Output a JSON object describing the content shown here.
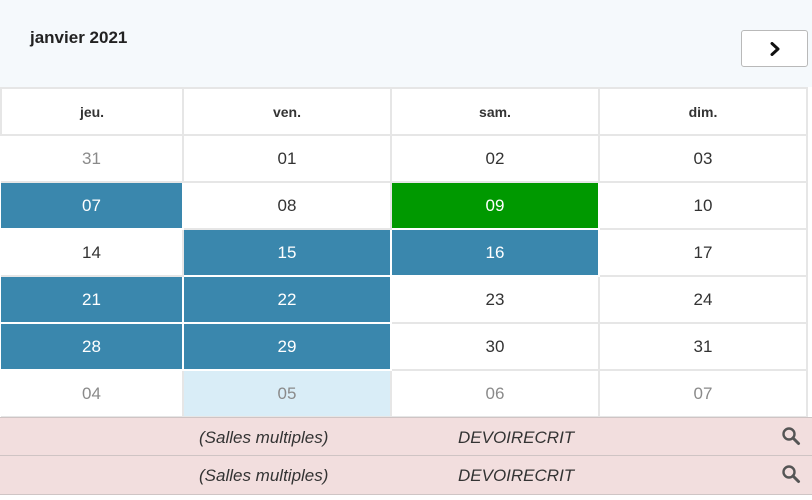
{
  "header": {
    "month_title": "janvier 2021"
  },
  "nav": {
    "next_icon": "chevron-right-icon"
  },
  "calendar": {
    "weekdays": [
      "jeu.",
      "ven.",
      "sam.",
      "dim."
    ],
    "weeks": [
      [
        {
          "day": "31",
          "state": "muted"
        },
        {
          "day": "01",
          "state": ""
        },
        {
          "day": "02",
          "state": ""
        },
        {
          "day": "03",
          "state": ""
        }
      ],
      [
        {
          "day": "07",
          "state": "blue"
        },
        {
          "day": "08",
          "state": ""
        },
        {
          "day": "09",
          "state": "green"
        },
        {
          "day": "10",
          "state": ""
        }
      ],
      [
        {
          "day": "14",
          "state": ""
        },
        {
          "day": "15",
          "state": "blue"
        },
        {
          "day": "16",
          "state": "blue"
        },
        {
          "day": "17",
          "state": ""
        }
      ],
      [
        {
          "day": "21",
          "state": "blue"
        },
        {
          "day": "22",
          "state": "blue"
        },
        {
          "day": "23",
          "state": ""
        },
        {
          "day": "24",
          "state": ""
        }
      ],
      [
        {
          "day": "28",
          "state": "blue"
        },
        {
          "day": "29",
          "state": "blue"
        },
        {
          "day": "30",
          "state": ""
        },
        {
          "day": "31",
          "state": ""
        }
      ],
      [
        {
          "day": "04",
          "state": "muted"
        },
        {
          "day": "05",
          "state": "today"
        },
        {
          "day": "06",
          "state": "muted"
        },
        {
          "day": "07",
          "state": "muted"
        }
      ]
    ]
  },
  "events": [
    {
      "room": "(Salles multiples)",
      "name": "DEVOIRECRIT",
      "icon": "search-icon"
    },
    {
      "room": "(Salles multiples)",
      "name": "DEVOIRECRIT",
      "icon": "search-icon"
    }
  ],
  "colors": {
    "selected": "#3a87ad",
    "highlight": "#009900",
    "today": "#d9edf7",
    "event_bg": "#f2dede"
  }
}
